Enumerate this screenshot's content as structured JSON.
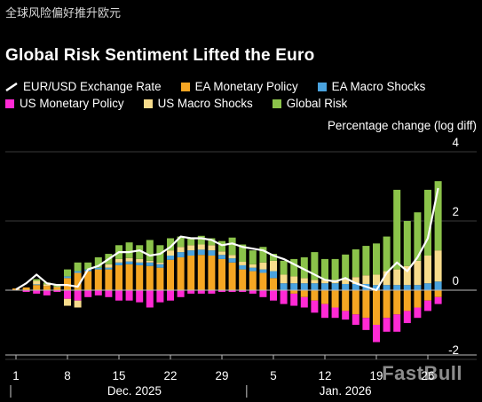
{
  "header": {
    "top_note": "全球风险偏好推升欧元",
    "title": "Global Risk Sentiment Lifted the Euro",
    "y_axis_label": "Percentage change (log diff)",
    "watermark": "FastBull"
  },
  "legend": [
    {
      "name": "EUR/USD Exchange Rate",
      "color": "#ffffff",
      "kind": "line"
    },
    {
      "name": "EA Monetary Policy",
      "color": "#f5a623",
      "kind": "bar"
    },
    {
      "name": "EA Macro Shocks",
      "color": "#4aa3df",
      "kind": "bar"
    },
    {
      "name": "US Monetary Policy",
      "color": "#ff2ad4",
      "kind": "bar"
    },
    {
      "name": "US Macro Shocks",
      "color": "#f7dc8c",
      "kind": "bar"
    },
    {
      "name": "Global Risk",
      "color": "#8bc34a",
      "kind": "bar"
    }
  ],
  "chart_data": {
    "type": "bar",
    "stacked": true,
    "title": "Global Risk Sentiment Lifted the Euro",
    "ylabel": "Percentage change (log diff)",
    "ylim": [
      -2.4,
      4
    ],
    "y_ticks": [
      4,
      2,
      0,
      -2
    ],
    "x_ticks": [
      "1",
      "8",
      "15",
      "22",
      "29",
      "5",
      "12",
      "19",
      "26"
    ],
    "x_groups": [
      "Dec. 2025",
      "Jan. 2026"
    ],
    "categories": [
      "Dec 1",
      "Dec 2",
      "Dec 3",
      "Dec 4",
      "Dec 5",
      "Dec 8",
      "Dec 9",
      "Dec 10",
      "Dec 11",
      "Dec 12",
      "Dec 15",
      "Dec 16",
      "Dec 17",
      "Dec 18",
      "Dec 19",
      "Dec 22",
      "Dec 23",
      "Dec 24",
      "Dec 25",
      "Dec 26",
      "Dec 29",
      "Dec 30",
      "Dec 31",
      "Jan 1",
      "Jan 2",
      "Jan 5",
      "Jan 6",
      "Jan 7",
      "Jan 8",
      "Jan 9",
      "Jan 12",
      "Jan 13",
      "Jan 14",
      "Jan 15",
      "Jan 16",
      "Jan 19",
      "Jan 20",
      "Jan 21",
      "Jan 22",
      "Jan 23",
      "Jan 26",
      "Jan 27"
    ],
    "series": [
      {
        "name": "EA Monetary Policy",
        "color": "#f5a623",
        "values": [
          0.05,
          0.08,
          0.15,
          0.12,
          0.08,
          0.35,
          0.5,
          0.55,
          0.6,
          0.6,
          0.72,
          0.75,
          0.72,
          0.7,
          0.65,
          0.88,
          0.95,
          1.0,
          1.02,
          1.0,
          0.9,
          0.8,
          0.6,
          0.55,
          0.5,
          0.35,
          0,
          -0.1,
          -0.2,
          -0.3,
          -0.4,
          -0.5,
          -0.6,
          -0.7,
          -0.8,
          -1.0,
          -0.8,
          -0.7,
          -0.6,
          -0.5,
          -0.3,
          -0.2
        ]
      },
      {
        "name": "EA Macro Shocks",
        "color": "#4aa3df",
        "values": [
          0,
          0,
          0.02,
          0,
          0,
          0.05,
          0.05,
          0.05,
          0.05,
          0.05,
          0.08,
          0.08,
          0.08,
          0.1,
          0.1,
          0.12,
          0.15,
          0.15,
          0.15,
          0.15,
          0.12,
          0.12,
          0.12,
          0.1,
          0.1,
          0.2,
          0.2,
          0.2,
          0.2,
          0.2,
          0.2,
          0.2,
          0.18,
          0.18,
          0.18,
          0.15,
          0.15,
          0.15,
          0.15,
          0.15,
          0.2,
          0.25
        ]
      },
      {
        "name": "US Monetary Policy",
        "color": "#ff2ad4",
        "values": [
          0,
          -0.05,
          -0.1,
          -0.15,
          -0.05,
          -0.25,
          -0.3,
          -0.2,
          -0.15,
          -0.2,
          -0.3,
          -0.3,
          -0.35,
          -0.5,
          -0.35,
          -0.3,
          -0.2,
          -0.1,
          -0.1,
          -0.1,
          -0.05,
          -0.05,
          -0.05,
          -0.1,
          -0.2,
          -0.3,
          -0.4,
          -0.35,
          -0.3,
          -0.35,
          -0.4,
          -0.3,
          -0.25,
          -0.3,
          -0.35,
          -0.5,
          -0.4,
          -0.5,
          -0.35,
          -0.3,
          -0.3,
          -0.2
        ]
      },
      {
        "name": "US Macro Shocks",
        "color": "#f7dc8c",
        "values": [
          0,
          0,
          0.1,
          0.05,
          0.02,
          -0.2,
          -0.2,
          0,
          0,
          0.1,
          0.1,
          0.1,
          0.1,
          0.05,
          0.05,
          0.15,
          0.15,
          0.15,
          0.15,
          0.15,
          0.1,
          0.1,
          0.1,
          0.1,
          0.2,
          0.3,
          0.25,
          0.2,
          0.15,
          0.1,
          0.1,
          0.1,
          0.15,
          0.2,
          0.25,
          0.3,
          0.4,
          0.45,
          0.55,
          0.7,
          0.8,
          0.9
        ]
      },
      {
        "name": "Global Risk",
        "color": "#8bc34a",
        "values": [
          0,
          0,
          0.05,
          0.05,
          0.05,
          0.2,
          0.25,
          0.2,
          0.3,
          0.3,
          0.4,
          0.45,
          0.4,
          0.6,
          0.5,
          0.35,
          0.3,
          0.2,
          0.25,
          0.2,
          0.3,
          0.5,
          0.5,
          0.4,
          0.45,
          0.2,
          0.4,
          0.5,
          0.6,
          0.8,
          0.6,
          0.6,
          0.7,
          0.8,
          0.85,
          0.9,
          1.0,
          2.3,
          1.3,
          1.4,
          1.9,
          2.0
        ]
      },
      {
        "name": "EUR/USD Exchange Rate",
        "color": "#ffffff",
        "kind": "line",
        "values": [
          0.02,
          0.2,
          0.45,
          0.2,
          0.15,
          0.15,
          0.1,
          0.6,
          0.7,
          0.9,
          1.1,
          1.1,
          1.15,
          1.0,
          1.05,
          1.25,
          1.55,
          1.5,
          1.5,
          1.45,
          1.3,
          1.35,
          1.25,
          1.2,
          1.15,
          1.0,
          0.9,
          0.75,
          0.6,
          0.45,
          0.3,
          0.25,
          0.35,
          0.2,
          0.1,
          0.0,
          0.5,
          0.8,
          0.55,
          0.95,
          1.5,
          2.95
        ]
      }
    ]
  }
}
